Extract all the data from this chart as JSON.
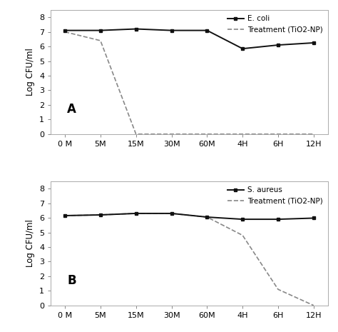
{
  "x_labels": [
    "0 M",
    "5M",
    "15M",
    "30M",
    "60M",
    "4H",
    "6H",
    "12H"
  ],
  "x_positions": [
    0,
    1,
    2,
    3,
    4,
    5,
    6,
    7
  ],
  "panel_A": {
    "label": "A",
    "ecoli_y": [
      7.1,
      7.1,
      7.2,
      7.1,
      7.1,
      5.85,
      6.1,
      6.25
    ],
    "treatment_y": [
      7.0,
      6.4,
      0.0,
      0.0,
      0.0,
      0.0,
      0.0,
      0.0
    ],
    "ecoli_label": "E. coli",
    "treatment_label": "Treatment (TiO2-NP)",
    "ylabel": "Log CFU/ml",
    "ylim": [
      0,
      8.5
    ],
    "yticks": [
      0,
      1,
      2,
      3,
      4,
      5,
      6,
      7,
      8
    ]
  },
  "panel_B": {
    "label": "B",
    "saureus_y": [
      6.15,
      6.2,
      6.3,
      6.3,
      6.05,
      5.9,
      5.9,
      5.98
    ],
    "treatment_y": [
      6.15,
      6.2,
      6.3,
      6.3,
      6.05,
      4.8,
      1.1,
      0.0
    ],
    "saureus_label": "S. aureus",
    "treatment_label": "Treatment (TiO2-NP)",
    "ylabel": "Log CFU/ml",
    "ylim": [
      0,
      8.5
    ],
    "yticks": [
      0,
      1,
      2,
      3,
      4,
      5,
      6,
      7,
      8
    ]
  },
  "line_color_solid": "#111111",
  "line_color_treatment": "#888888",
  "background_color": "#ffffff",
  "fontsize_tick": 8,
  "fontsize_ylabel": 8.5,
  "fontsize_legend": 7.5,
  "fontsize_panel": 12
}
